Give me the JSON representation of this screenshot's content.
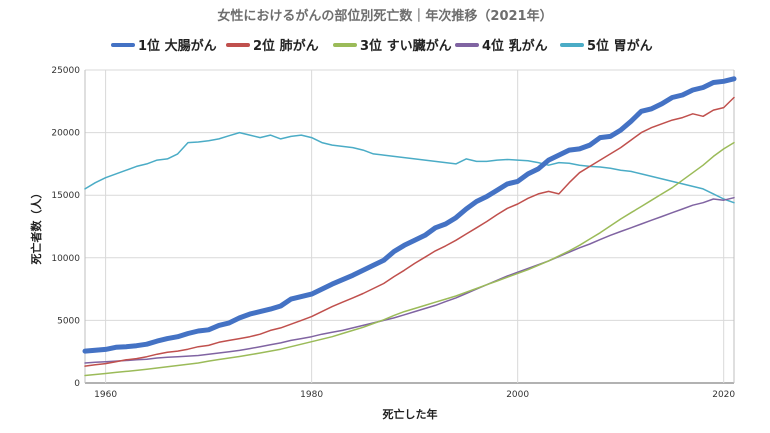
{
  "chart_data": {
    "type": "line",
    "title": "女性におけるがんの部位別死亡数｜年次推移（2021年）",
    "xlabel": "死亡した年",
    "ylabel": "死亡者数（人）",
    "xlim": [
      1958,
      2021
    ],
    "ylim": [
      0,
      25000
    ],
    "xticks": [
      "1960",
      "1980",
      "2000",
      "2020"
    ],
    "yticks": [
      "0",
      "5000",
      "10000",
      "15000",
      "20000",
      "25000"
    ],
    "grid": true,
    "legend_position": "top",
    "x": [
      1958,
      1959,
      1960,
      1961,
      1962,
      1963,
      1964,
      1965,
      1966,
      1967,
      1968,
      1969,
      1970,
      1971,
      1972,
      1973,
      1974,
      1975,
      1976,
      1977,
      1978,
      1979,
      1980,
      1981,
      1982,
      1983,
      1984,
      1985,
      1986,
      1987,
      1988,
      1989,
      1990,
      1991,
      1992,
      1993,
      1994,
      1995,
      1996,
      1997,
      1998,
      1999,
      2000,
      2001,
      2002,
      2003,
      2004,
      2005,
      2006,
      2007,
      2008,
      2009,
      2010,
      2011,
      2012,
      2013,
      2014,
      2015,
      2016,
      2017,
      2018,
      2019,
      2020,
      2021
    ],
    "series": [
      {
        "name": "1位 大腸がん",
        "color": "#4472c4",
        "width": 5,
        "values": [
          2550,
          2620,
          2680,
          2850,
          2900,
          2980,
          3100,
          3350,
          3550,
          3700,
          3950,
          4150,
          4250,
          4600,
          4800,
          5200,
          5500,
          5700,
          5900,
          6150,
          6700,
          6900,
          7100,
          7500,
          7900,
          8250,
          8600,
          9000,
          9400,
          9800,
          10500,
          11000,
          11400,
          11800,
          12400,
          12700,
          13200,
          13900,
          14500,
          14900,
          15400,
          15900,
          16100,
          16700,
          17100,
          17800,
          18200,
          18600,
          18700,
          19000,
          19600,
          19700,
          20200,
          20900,
          21700,
          21900,
          22300,
          22800,
          23000,
          23400,
          23600,
          24000,
          24100,
          24300
        ]
      },
      {
        "name": "2位 肺がん",
        "color": "#c0504d",
        "width": 1.5,
        "values": [
          1350,
          1450,
          1550,
          1700,
          1850,
          1950,
          2100,
          2300,
          2450,
          2550,
          2700,
          2900,
          3000,
          3250,
          3400,
          3550,
          3700,
          3900,
          4200,
          4400,
          4700,
          5000,
          5300,
          5700,
          6100,
          6450,
          6800,
          7150,
          7550,
          7950,
          8500,
          9000,
          9550,
          10050,
          10550,
          10950,
          11400,
          11900,
          12400,
          12900,
          13450,
          13950,
          14300,
          14750,
          15100,
          15300,
          15100,
          16000,
          16800,
          17300,
          17800,
          18300,
          18800,
          19400,
          20000,
          20400,
          20700,
          21000,
          21200,
          21500,
          21300,
          21800,
          22000,
          22800
        ]
      },
      {
        "name": "3位 すい臓がん",
        "color": "#9bbb59",
        "width": 1.5,
        "values": [
          600,
          680,
          760,
          850,
          930,
          1010,
          1100,
          1200,
          1300,
          1400,
          1500,
          1600,
          1750,
          1880,
          2000,
          2120,
          2250,
          2400,
          2550,
          2700,
          2900,
          3100,
          3300,
          3500,
          3700,
          3950,
          4200,
          4450,
          4750,
          5050,
          5400,
          5700,
          5950,
          6200,
          6450,
          6700,
          6950,
          7250,
          7550,
          7850,
          8150,
          8450,
          8750,
          9050,
          9400,
          9750,
          10150,
          10550,
          11000,
          11500,
          12000,
          12550,
          13100,
          13600,
          14100,
          14600,
          15100,
          15600,
          16200,
          16800,
          17400,
          18100,
          18700,
          19200
        ]
      },
      {
        "name": "4位 乳がん",
        "color": "#8064a2",
        "width": 1.5,
        "values": [
          1600,
          1650,
          1700,
          1750,
          1800,
          1850,
          1900,
          2000,
          2050,
          2100,
          2150,
          2200,
          2300,
          2400,
          2500,
          2600,
          2750,
          2900,
          3050,
          3200,
          3400,
          3550,
          3700,
          3900,
          4050,
          4200,
          4400,
          4600,
          4800,
          5000,
          5200,
          5450,
          5700,
          5950,
          6200,
          6500,
          6800,
          7150,
          7500,
          7850,
          8200,
          8550,
          8850,
          9150,
          9450,
          9750,
          10100,
          10450,
          10800,
          11100,
          11450,
          11800,
          12100,
          12400,
          12700,
          13000,
          13300,
          13600,
          13900,
          14200,
          14400,
          14700,
          14600,
          14800
        ]
      },
      {
        "name": "5位 胃がん",
        "color": "#4bacc6",
        "width": 1.5,
        "values": [
          15500,
          16000,
          16400,
          16700,
          17000,
          17300,
          17500,
          17800,
          17900,
          18300,
          19200,
          19250,
          19350,
          19500,
          19750,
          20000,
          19800,
          19600,
          19800,
          19500,
          19700,
          19800,
          19600,
          19200,
          19000,
          18900,
          18800,
          18600,
          18300,
          18200,
          18100,
          18000,
          17900,
          17800,
          17700,
          17600,
          17500,
          17900,
          17700,
          17700,
          17800,
          17850,
          17800,
          17750,
          17600,
          17400,
          17600,
          17550,
          17400,
          17300,
          17250,
          17150,
          17000,
          16900,
          16700,
          16500,
          16300,
          16100,
          15900,
          15700,
          15500,
          15100,
          14700,
          14400
        ]
      }
    ]
  }
}
